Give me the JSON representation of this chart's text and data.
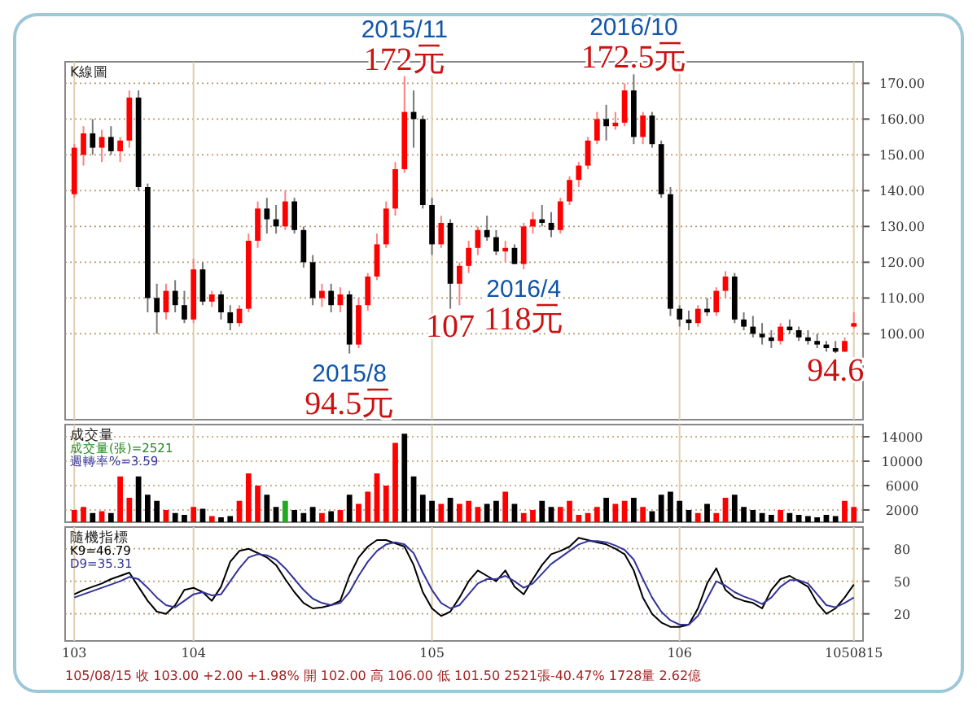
{
  "chart_data": [
    {
      "type": "candlestick",
      "title": "K線圖",
      "categories": [
        "103",
        null,
        null,
        null,
        null,
        null,
        null,
        null,
        null,
        null,
        null,
        null,
        null,
        "104",
        null,
        null,
        null,
        null,
        null,
        null,
        null,
        null,
        null,
        null,
        null,
        null,
        null,
        null,
        null,
        null,
        null,
        null,
        null,
        null,
        null,
        null,
        null,
        null,
        null,
        "105",
        null,
        null,
        null,
        null,
        null,
        null,
        null,
        null,
        null,
        null,
        null,
        null,
        null,
        null,
        null,
        null,
        null,
        null,
        null,
        null,
        null,
        null,
        null,
        null,
        null,
        null,
        "106",
        null,
        null,
        null,
        null,
        null,
        null,
        null,
        null,
        null,
        null,
        null,
        null,
        null,
        null,
        null,
        null,
        null,
        null,
        "1050815"
      ],
      "ohlc": [
        [
          139,
          153,
          138,
          152
        ],
        [
          150,
          158,
          147,
          156
        ],
        [
          156,
          160,
          150,
          152
        ],
        [
          152,
          157,
          148,
          155
        ],
        [
          155,
          158,
          150,
          151
        ],
        [
          151,
          155,
          148,
          154
        ],
        [
          154,
          168,
          152,
          166
        ],
        [
          166,
          168,
          140,
          141
        ],
        [
          141,
          142,
          106,
          110
        ],
        [
          110,
          114,
          100,
          106
        ],
        [
          106,
          114,
          104,
          112
        ],
        [
          112,
          115,
          106,
          108
        ],
        [
          108,
          112,
          103,
          104
        ],
        [
          104,
          121,
          103,
          118
        ],
        [
          118,
          120,
          108,
          109
        ],
        [
          109,
          112,
          107.5,
          111
        ],
        [
          111,
          112,
          104,
          106
        ],
        [
          106,
          108,
          101,
          103
        ],
        [
          103,
          108,
          102,
          107
        ],
        [
          107,
          128,
          106,
          126
        ],
        [
          126,
          137,
          124,
          135
        ],
        [
          135,
          138,
          128,
          132
        ],
        [
          132,
          136,
          128,
          130
        ],
        [
          130,
          140,
          129,
          137
        ],
        [
          137,
          138,
          128,
          129
        ],
        [
          129,
          130,
          118.5,
          120
        ],
        [
          120,
          122,
          108,
          110
        ],
        [
          110,
          114,
          107.5,
          112
        ],
        [
          112,
          114,
          106,
          108
        ],
        [
          108,
          113,
          106,
          111
        ],
        [
          111,
          112,
          94.5,
          97
        ],
        [
          97,
          110,
          96,
          108
        ],
        [
          108,
          117,
          106.5,
          116
        ],
        [
          116,
          128,
          115,
          125
        ],
        [
          125,
          137,
          124,
          135
        ],
        [
          135,
          148,
          133,
          146
        ],
        [
          146,
          172,
          145,
          162
        ],
        [
          162,
          168,
          152,
          160
        ],
        [
          160,
          161,
          135,
          136
        ],
        [
          136,
          138,
          122,
          125
        ],
        [
          125,
          133,
          124,
          131
        ],
        [
          131,
          132,
          107,
          114
        ],
        [
          114,
          120,
          108,
          119
        ],
        [
          119,
          126,
          117,
          124
        ],
        [
          124,
          130,
          122,
          129
        ],
        [
          129,
          133,
          126,
          127
        ],
        [
          127,
          129,
          122,
          123
        ],
        [
          123,
          126,
          120,
          124
        ],
        [
          124,
          125,
          119.5,
          119.5
        ],
        [
          119.5,
          131,
          118,
          130
        ],
        [
          130,
          134,
          128,
          132
        ],
        [
          132,
          136,
          130,
          131
        ],
        [
          131,
          134,
          127,
          129
        ],
        [
          129,
          138,
          128,
          137
        ],
        [
          137,
          144,
          136,
          143
        ],
        [
          143,
          148,
          141,
          147
        ],
        [
          147,
          155,
          146,
          154
        ],
        [
          154,
          162,
          153,
          160
        ],
        [
          160,
          164,
          154,
          158
        ],
        [
          158,
          162,
          157,
          159
        ],
        [
          159,
          170,
          158,
          168
        ],
        [
          168,
          172.5,
          153,
          155
        ],
        [
          155,
          162,
          153,
          161
        ],
        [
          161,
          162,
          152,
          153
        ],
        [
          153,
          154,
          138,
          139
        ],
        [
          139,
          141,
          105,
          107
        ],
        [
          107,
          108,
          102,
          104
        ],
        [
          104,
          106.5,
          101,
          103
        ],
        [
          103,
          108,
          102,
          107
        ],
        [
          107,
          110,
          105,
          106
        ],
        [
          106,
          113,
          105,
          112
        ],
        [
          112,
          117.5,
          110,
          116
        ],
        [
          116,
          117,
          103,
          104
        ],
        [
          104,
          106,
          101,
          102
        ],
        [
          102,
          105,
          99,
          100
        ],
        [
          100,
          103,
          97,
          99
        ],
        [
          99,
          101,
          96,
          98
        ],
        [
          98,
          103,
          97,
          102
        ],
        [
          102,
          104,
          100,
          101
        ],
        [
          101,
          102,
          98,
          99
        ],
        [
          99,
          101,
          97,
          98
        ],
        [
          98,
          100,
          96,
          97
        ],
        [
          97,
          98,
          95,
          96
        ],
        [
          96,
          98,
          94.6,
          95
        ],
        [
          95,
          99,
          95,
          98
        ],
        [
          102,
          106,
          101.5,
          103
        ]
      ],
      "ylim": [
        76,
        176
      ],
      "yticks": [
        {
          "value": 100,
          "label": "100.00"
        },
        {
          "value": 110,
          "label": "110.00"
        },
        {
          "value": 120,
          "label": "120.00"
        },
        {
          "value": 130,
          "label": "130.00"
        },
        {
          "value": 140,
          "label": "140.00"
        },
        {
          "value": 150,
          "label": "150.00"
        },
        {
          "value": 160,
          "label": "160.00"
        },
        {
          "value": 170,
          "label": "170.00"
        }
      ],
      "grid": true,
      "tick_labels": "y",
      "annotations": [
        {
          "text": "2015/11",
          "y": 172
        },
        {
          "text": "172元",
          "y": 172
        },
        {
          "text": "2016/10",
          "y": 172.5
        },
        {
          "text": "172.5元",
          "y": 172.5
        },
        {
          "text": "107",
          "y": 107
        },
        {
          "text": "2016/4",
          "y": 118
        },
        {
          "text": "118元",
          "y": 118
        },
        {
          "text": "2015/8",
          "y": 94.5
        },
        {
          "text": "94.5元",
          "y": 94.5
        },
        {
          "text": "94.6",
          "y": 94.6
        }
      ]
    },
    {
      "type": "bar",
      "title": "成交量",
      "categories": [
        "103",
        null,
        null,
        null,
        null,
        null,
        null,
        null,
        null,
        null,
        null,
        null,
        null,
        "104",
        null,
        null,
        null,
        null,
        null,
        null,
        null,
        null,
        null,
        null,
        null,
        null,
        null,
        null,
        null,
        null,
        null,
        null,
        null,
        null,
        null,
        null,
        null,
        null,
        null,
        "105",
        null,
        null,
        null,
        null,
        null,
        null,
        null,
        null,
        null,
        null,
        null,
        null,
        null,
        null,
        null,
        null,
        null,
        null,
        null,
        null,
        null,
        null,
        null,
        null,
        null,
        null,
        "106",
        null,
        null,
        null,
        null,
        null,
        null,
        null,
        null,
        null,
        null,
        null,
        null,
        null,
        null,
        null,
        null,
        null,
        null,
        "1050815"
      ],
      "values": [
        2000,
        2500,
        1500,
        1800,
        1500,
        7500,
        4000,
        7500,
        4500,
        3500,
        2000,
        1500,
        1200,
        2500,
        2200,
        1000,
        800,
        1000,
        3500,
        8000,
        6000,
        4500,
        2500,
        3500,
        2000,
        1500,
        2500,
        1500,
        1800,
        2000,
        4500,
        3000,
        5000,
        8000,
        6000,
        13000,
        14500,
        7500,
        4500,
        3500,
        3000,
        4000,
        3000,
        3500,
        2500,
        3000,
        3500,
        5000,
        3000,
        1500,
        2000,
        3500,
        2500,
        2500,
        3500,
        1200,
        1500,
        2500,
        4000,
        3000,
        3500,
        4000,
        2500,
        1800,
        4500,
        5000,
        3500,
        2000,
        1500,
        3000,
        1500,
        4000,
        4500,
        2500,
        2000,
        1500,
        1200,
        2000,
        1500,
        1200,
        1000,
        800,
        1200,
        1000,
        3500,
        2500
      ],
      "colors": [
        "#ff0000",
        "#ff0000",
        "#000000",
        "#ff0000",
        "#000000",
        "#ff0000",
        "#ff0000",
        "#000000",
        "#000000",
        "#000000",
        "#ff0000",
        "#000000",
        "#000000",
        "#ff0000",
        "#000000",
        "#ff0000",
        "#000000",
        "#000000",
        "#ff0000",
        "#ff0000",
        "#ff0000",
        "#000000",
        "#000000",
        "#22aa22",
        "#000000",
        "#000000",
        "#000000",
        "#ff0000",
        "#000000",
        "#ff0000",
        "#000000",
        "#ff0000",
        "#ff0000",
        "#ff0000",
        "#ff0000",
        "#ff0000",
        "#000000",
        "#000000",
        "#000000",
        "#000000",
        "#ff0000",
        "#000000",
        "#ff0000",
        "#ff0000",
        "#ff0000",
        "#000000",
        "#000000",
        "#ff0000",
        "#000000",
        "#ff0000",
        "#ff0000",
        "#000000",
        "#000000",
        "#ff0000",
        "#ff0000",
        "#ff0000",
        "#ff0000",
        "#ff0000",
        "#000000",
        "#ff0000",
        "#ff0000",
        "#000000",
        "#ff0000",
        "#000000",
        "#000000",
        "#000000",
        "#000000",
        "#000000",
        "#ff0000",
        "#000000",
        "#ff0000",
        "#ff0000",
        "#000000",
        "#000000",
        "#000000",
        "#000000",
        "#000000",
        "#ff0000",
        "#000000",
        "#000000",
        "#000000",
        "#000000",
        "#000000",
        "#000000",
        "#ff0000",
        "#ff0000"
      ],
      "ylim": [
        0,
        16000
      ],
      "yticks": [
        2000,
        6000,
        10000,
        14000
      ],
      "grid": true,
      "tick_labels": "y",
      "annotations": [
        "成交量(張)=2521",
        "週轉率%=3.59"
      ]
    },
    {
      "type": "line",
      "title": "隨機指標",
      "subtitle": "105/08/15 收 103.00 +2.00 +1.98% 開 102.00 高 106.00 低 101.50 2521張-40.47% 1728量 2.62億",
      "categories": [
        "103",
        null,
        null,
        null,
        null,
        null,
        null,
        null,
        null,
        null,
        null,
        null,
        null,
        "104",
        null,
        null,
        null,
        null,
        null,
        null,
        null,
        null,
        null,
        null,
        null,
        null,
        null,
        null,
        null,
        null,
        null,
        null,
        null,
        null,
        null,
        null,
        null,
        null,
        null,
        "105",
        null,
        null,
        null,
        null,
        null,
        null,
        null,
        null,
        null,
        null,
        null,
        null,
        null,
        null,
        null,
        null,
        null,
        null,
        null,
        null,
        null,
        null,
        null,
        null,
        null,
        null,
        "106",
        null,
        null,
        null,
        null,
        null,
        null,
        null,
        null,
        null,
        null,
        null,
        null,
        null,
        null,
        null,
        null,
        null,
        null,
        "1050815"
      ],
      "series": [
        {
          "name": "K9=46.79",
          "color": "#000000",
          "values": [
            38,
            42,
            45,
            48,
            52,
            55,
            58,
            45,
            32,
            22,
            20,
            28,
            42,
            44,
            40,
            32,
            45,
            68,
            78,
            80,
            76,
            72,
            65,
            52,
            40,
            30,
            25,
            26,
            28,
            32,
            55,
            72,
            82,
            88,
            88,
            85,
            82,
            65,
            40,
            25,
            18,
            22,
            35,
            50,
            60,
            55,
            50,
            60,
            45,
            38,
            52,
            65,
            75,
            78,
            82,
            90,
            88,
            86,
            84,
            80,
            75,
            60,
            35,
            20,
            12,
            8,
            8,
            10,
            25,
            48,
            62,
            42,
            35,
            32,
            30,
            25,
            42,
            52,
            55,
            50,
            45,
            30,
            20,
            25,
            35,
            47
          ]
        },
        {
          "name": "D9=35.31",
          "color": "#33339a",
          "values": [
            35,
            38,
            41,
            44,
            47,
            50,
            54,
            52,
            44,
            35,
            28,
            26,
            32,
            38,
            40,
            37,
            38,
            50,
            62,
            72,
            75,
            74,
            70,
            62,
            52,
            42,
            34,
            30,
            28,
            30,
            40,
            55,
            68,
            78,
            84,
            86,
            84,
            76,
            58,
            42,
            30,
            25,
            28,
            38,
            48,
            52,
            52,
            55,
            50,
            44,
            48,
            57,
            66,
            72,
            78,
            84,
            87,
            87,
            86,
            83,
            79,
            70,
            52,
            35,
            22,
            14,
            10,
            10,
            18,
            34,
            50,
            46,
            40,
            36,
            33,
            29,
            35,
            45,
            51,
            51,
            48,
            38,
            28,
            26,
            30,
            35
          ]
        }
      ],
      "ylim": [
        -5,
        100
      ],
      "yticks": [
        20,
        50,
        80
      ],
      "grid": true,
      "legend": "top left",
      "line_style": "solid"
    }
  ]
}
